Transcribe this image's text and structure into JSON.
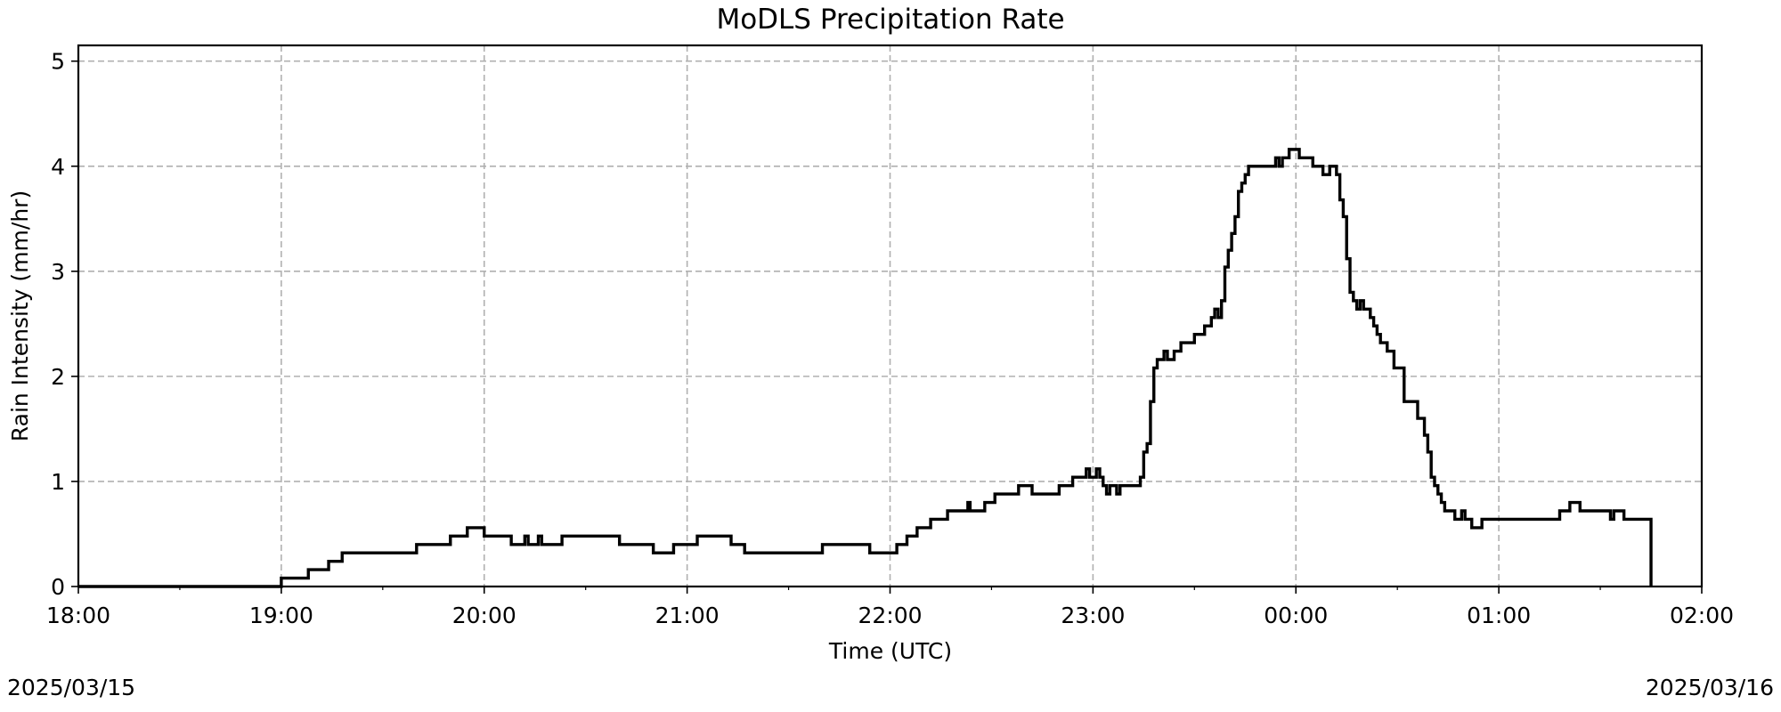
{
  "chart_data": {
    "type": "line",
    "step": true,
    "title": "MoDLS Precipitation Rate",
    "xlabel": "Time (UTC)",
    "ylabel": "Rain Intensity (mm/hr)",
    "x_ticks": [
      "18:00",
      "19:00",
      "20:00",
      "21:00",
      "22:00",
      "23:00",
      "00:00",
      "01:00",
      "02:00"
    ],
    "y_ticks": [
      "0",
      "1",
      "2",
      "3",
      "4",
      "5"
    ],
    "xlim": [
      "2025-03-15 18:00",
      "2025-03-16 02:00"
    ],
    "ylim": [
      0,
      5.15
    ],
    "grid": true,
    "line_color": "#000000",
    "date_start": "2025/03/15",
    "date_end": "2025/03/16",
    "series": [
      {
        "x": [
          "2025-03-15 18:00",
          "2025-03-15 19:00",
          "2025-03-15 19:08",
          "2025-03-15 19:14",
          "2025-03-15 19:18",
          "2025-03-15 19:40",
          "2025-03-15 19:50",
          "2025-03-15 19:55",
          "2025-03-15 20:00",
          "2025-03-15 20:08",
          "2025-03-15 20:12",
          "2025-03-15 20:13",
          "2025-03-15 20:16",
          "2025-03-15 20:17",
          "2025-03-15 20:23",
          "2025-03-15 20:40",
          "2025-03-15 20:50",
          "2025-03-15 20:56",
          "2025-03-15 21:03",
          "2025-03-15 21:13",
          "2025-03-15 21:17",
          "2025-03-15 21:40",
          "2025-03-15 21:54",
          "2025-03-15 22:02",
          "2025-03-15 22:05",
          "2025-03-15 22:08",
          "2025-03-15 22:12",
          "2025-03-15 22:17",
          "2025-03-15 22:23",
          "2025-03-15 22:23:40",
          "2025-03-15 22:24:20",
          "2025-03-15 22:28",
          "2025-03-15 22:31",
          "2025-03-15 22:38",
          "2025-03-15 22:42",
          "2025-03-15 22:50",
          "2025-03-15 22:54",
          "2025-03-15 22:58",
          "2025-03-15 22:59",
          "2025-03-15 23:00",
          "2025-03-15 23:01",
          "2025-03-15 23:02",
          "2025-03-15 23:03",
          "2025-03-15 23:04",
          "2025-03-15 23:05",
          "2025-03-15 23:07",
          "2025-03-15 23:08",
          "2025-03-15 23:14",
          "2025-03-15 23:15",
          "2025-03-15 23:16",
          "2025-03-15 23:17",
          "2025-03-15 23:18",
          "2025-03-15 23:19",
          "2025-03-15 23:21",
          "2025-03-15 23:22",
          "2025-03-15 23:24",
          "2025-03-15 23:26",
          "2025-03-15 23:30",
          "2025-03-15 23:33",
          "2025-03-15 23:35",
          "2025-03-15 23:36",
          "2025-03-15 23:37",
          "2025-03-15 23:38",
          "2025-03-15 23:39",
          "2025-03-15 23:40",
          "2025-03-15 23:41",
          "2025-03-15 23:42",
          "2025-03-15 23:43",
          "2025-03-15 23:44",
          "2025-03-15 23:45",
          "2025-03-15 23:46",
          "2025-03-15 23:48",
          "2025-03-15 23:54",
          "2025-03-15 23:55",
          "2025-03-15 23:56",
          "2025-03-15 23:58",
          "2025-03-16 00:01",
          "2025-03-16 00:05",
          "2025-03-16 00:08",
          "2025-03-16 00:10",
          "2025-03-16 00:12",
          "2025-03-16 00:13",
          "2025-03-16 00:14",
          "2025-03-16 00:15",
          "2025-03-16 00:16",
          "2025-03-16 00:17",
          "2025-03-16 00:18",
          "2025-03-16 00:19",
          "2025-03-16 00:20",
          "2025-03-16 00:22",
          "2025-03-16 00:23",
          "2025-03-16 00:24",
          "2025-03-16 00:25",
          "2025-03-16 00:27",
          "2025-03-16 00:29",
          "2025-03-16 00:32",
          "2025-03-16 00:36",
          "2025-03-16 00:38",
          "2025-03-16 00:39",
          "2025-03-16 00:40",
          "2025-03-16 00:41",
          "2025-03-16 00:42",
          "2025-03-16 00:43",
          "2025-03-16 00:44",
          "2025-03-16 00:47",
          "2025-03-16 00:49",
          "2025-03-16 00:50",
          "2025-03-16 00:52",
          "2025-03-16 00:55",
          "2025-03-16 01:01",
          "2025-03-16 01:02",
          "2025-03-16 01:18",
          "2025-03-16 01:21",
          "2025-03-16 01:24",
          "2025-03-16 01:32",
          "2025-03-16 01:33",
          "2025-03-16 01:34",
          "2025-03-16 01:37",
          "2025-03-16 01:45",
          "2025-03-16 01:45"
        ],
        "y": [
          0.0,
          0.08,
          0.16,
          0.24,
          0.32,
          0.4,
          0.48,
          0.56,
          0.48,
          0.4,
          0.48,
          0.4,
          0.48,
          0.4,
          0.48,
          0.4,
          0.32,
          0.4,
          0.48,
          0.4,
          0.32,
          0.4,
          0.32,
          0.4,
          0.48,
          0.56,
          0.64,
          0.72,
          0.8,
          0.72,
          0.72,
          0.8,
          0.88,
          0.96,
          0.88,
          0.96,
          1.04,
          1.12,
          1.04,
          1.04,
          1.12,
          1.04,
          0.96,
          0.88,
          0.96,
          0.88,
          0.96,
          1.04,
          1.28,
          1.36,
          1.76,
          2.08,
          2.16,
          2.24,
          2.16,
          2.24,
          2.32,
          2.4,
          2.48,
          2.56,
          2.64,
          2.56,
          2.72,
          3.04,
          3.2,
          3.36,
          3.52,
          3.76,
          3.84,
          3.92,
          4.0,
          4.0,
          4.08,
          4.0,
          4.08,
          4.16,
          4.08,
          4.0,
          3.92,
          4.0,
          3.92,
          3.68,
          3.52,
          3.12,
          2.8,
          2.72,
          2.64,
          2.72,
          2.64,
          2.56,
          2.48,
          2.4,
          2.32,
          2.24,
          2.08,
          1.76,
          1.6,
          1.44,
          1.28,
          1.04,
          0.96,
          0.88,
          0.8,
          0.72,
          0.64,
          0.72,
          0.64,
          0.56,
          0.64,
          0.64,
          0.64,
          0.72,
          0.8,
          0.72,
          0.72,
          0.64,
          0.72,
          0.64,
          0.64,
          0.0
        ]
      }
    ]
  }
}
